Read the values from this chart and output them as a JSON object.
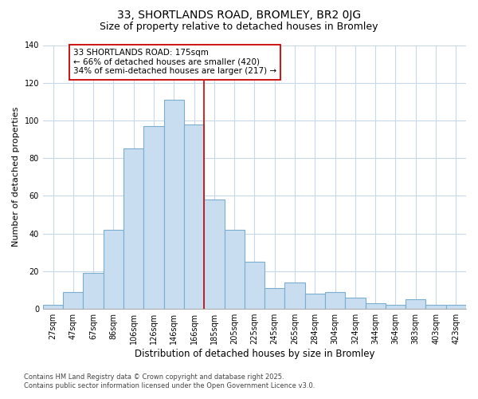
{
  "title": "33, SHORTLANDS ROAD, BROMLEY, BR2 0JG",
  "subtitle": "Size of property relative to detached houses in Bromley",
  "xlabel": "Distribution of detached houses by size in Bromley",
  "ylabel": "Number of detached properties",
  "bar_labels": [
    "27sqm",
    "47sqm",
    "67sqm",
    "86sqm",
    "106sqm",
    "126sqm",
    "146sqm",
    "166sqm",
    "185sqm",
    "205sqm",
    "225sqm",
    "245sqm",
    "265sqm",
    "284sqm",
    "304sqm",
    "324sqm",
    "344sqm",
    "364sqm",
    "383sqm",
    "403sqm",
    "423sqm"
  ],
  "bar_heights": [
    2,
    9,
    19,
    42,
    85,
    97,
    111,
    98,
    58,
    42,
    25,
    11,
    14,
    8,
    9,
    6,
    3,
    2,
    5,
    2,
    2
  ],
  "bar_color": "#c9ddf0",
  "bar_edge_color": "#7aaecc",
  "bg_color": "#ffffff",
  "grid_color": "#c8d8e8",
  "vline_color": "#cc0000",
  "annotation_text": "33 SHORTLANDS ROAD: 175sqm\n← 66% of detached houses are smaller (420)\n34% of semi-detached houses are larger (217) →",
  "annotation_box_color": "#ffffff",
  "annotation_box_edge": "#cc0000",
  "ylim": [
    0,
    140
  ],
  "yticks": [
    0,
    20,
    40,
    60,
    80,
    100,
    120,
    140
  ],
  "footnote": "Contains HM Land Registry data © Crown copyright and database right 2025.\nContains public sector information licensed under the Open Government Licence v3.0.",
  "title_fontsize": 10,
  "subtitle_fontsize": 9,
  "xlabel_fontsize": 8.5,
  "ylabel_fontsize": 8,
  "tick_fontsize": 7,
  "annot_fontsize": 7.5,
  "footnote_fontsize": 6
}
